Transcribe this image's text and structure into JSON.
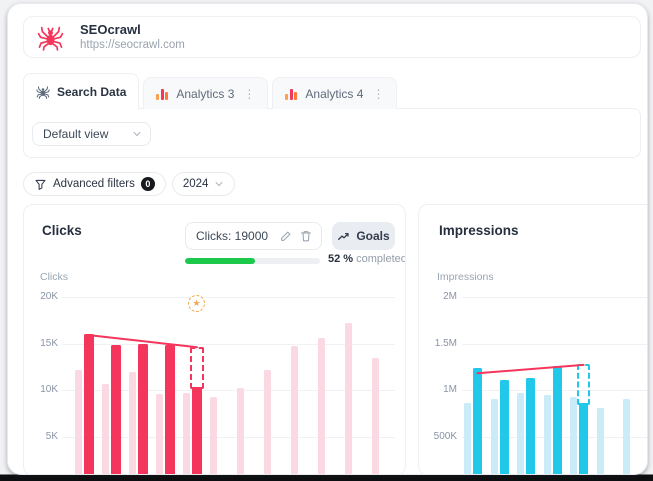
{
  "icons": {
    "star": "★",
    "kebab": "⋮"
  },
  "colors": {
    "accent_red": "#f5365c",
    "pale_red": "#fbd9e2",
    "accent_cyan": "#22c8ea",
    "pale_cyan": "#c9ecf8",
    "progress_green": "#1cc94b",
    "goal_orange": "#f0a94c"
  },
  "header": {
    "title": "SEOcrawl",
    "url": "https://seocrawl.com"
  },
  "tabs": [
    {
      "label": "Search Data",
      "active": true
    },
    {
      "label": "Analytics 3",
      "active": false
    },
    {
      "label": "Analytics 4",
      "active": false
    }
  ],
  "view_select": {
    "value": "Default view"
  },
  "filters": {
    "advanced_label": "Advanced filters",
    "badge": "0",
    "year": "2024"
  },
  "goal": {
    "input_value": "Clicks: 19000",
    "button_label": "Goals",
    "progress_pct": 52,
    "progress_bold": "52 %",
    "progress_rest": "completed"
  },
  "clicks_card": {
    "title": "Clicks"
  },
  "impressions_card": {
    "title": "Impressions"
  },
  "chart_data": [
    {
      "type": "bar",
      "title": "Clicks",
      "ylabel": "Clicks",
      "ylim": [
        0,
        21000
      ],
      "grid": true,
      "legend": "none",
      "yticks": [
        {
          "label": "20K",
          "value": 20000
        },
        {
          "label": "15K",
          "value": 15000
        },
        {
          "label": "10K",
          "value": 10000
        },
        {
          "label": "5K",
          "value": 5000
        }
      ],
      "months_visible": 12,
      "series": [
        {
          "name": "previous-period",
          "color": "#fbd9e2",
          "values": [
            12200,
            10600,
            11900,
            9600,
            9700,
            9200,
            10200,
            12200,
            14700,
            15600,
            17200,
            13400
          ]
        },
        {
          "name": "current-period",
          "color": "#f5365c",
          "values": [
            16000,
            14800,
            14900,
            14800,
            10300
          ]
        }
      ],
      "forecast": {
        "month_index": 4,
        "value": 14600,
        "style": "dashed"
      },
      "goal_marker": {
        "month_index": 4,
        "value": 19200,
        "icon": "star"
      },
      "trend_line": {
        "color": "#f5365c",
        "from_month": 0,
        "from_value": 15900,
        "to_month": 4,
        "to_value": 14600
      }
    },
    {
      "type": "bar",
      "title": "Impressions",
      "ylabel": "Impressions",
      "ylim": [
        0,
        2100000
      ],
      "grid": true,
      "legend": "none",
      "yticks": [
        {
          "label": "2M",
          "value": 2000000
        },
        {
          "label": "1.5M",
          "value": 1500000
        },
        {
          "label": "1M",
          "value": 1000000
        },
        {
          "label": "500K",
          "value": 500000
        }
      ],
      "months_visible": 8,
      "series": [
        {
          "name": "previous-period",
          "color": "#c9ecf8",
          "values": [
            860000,
            900000,
            970000,
            950000,
            930000,
            810000,
            900000,
            1050000
          ]
        },
        {
          "name": "current-period",
          "color": "#22c8ea",
          "values": [
            1240000,
            1110000,
            1130000,
            1260000,
            860000
          ]
        }
      ],
      "forecast": {
        "month_index": 4,
        "value": 1280000,
        "style": "dashed"
      },
      "trend_line": {
        "color": "#f5365c",
        "from_month": 0,
        "from_value": 1180000,
        "to_month": 4,
        "to_value": 1270000
      }
    }
  ]
}
